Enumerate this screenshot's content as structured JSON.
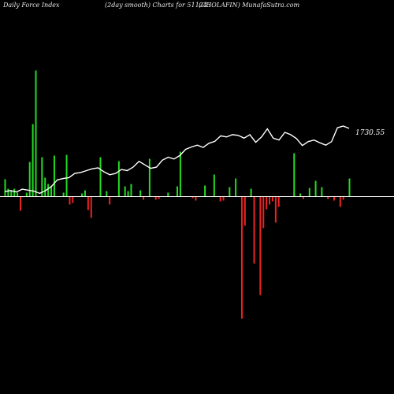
{
  "header": {
    "title_left": "Daily Force  Index",
    "title_center": "(2day smooth) Charts for 511243",
    "title_right": "(CHOLAFIN) MunafaSutra.com"
  },
  "chart_data": {
    "type": "bar",
    "title": "Daily Force Index (2day smooth) Charts for 511243",
    "xlabel": "",
    "ylabel": "",
    "grid": false,
    "legend": "none",
    "colors": {
      "positive": "#22dd22",
      "negative": "#ee2222",
      "zero_line": "#ffffff",
      "price_line": "#ffffff",
      "background": "#000000"
    },
    "force_index": [
      22,
      10,
      7,
      10,
      5,
      -18,
      0,
      5,
      44,
      92,
      160,
      0,
      50,
      24,
      16,
      13,
      52,
      0,
      0,
      5,
      53,
      -10,
      -8,
      0,
      0,
      4,
      8,
      -17,
      -27,
      0,
      0,
      50,
      0,
      7,
      -10,
      0,
      0,
      45,
      0,
      13,
      7,
      16,
      0,
      0,
      8,
      -4,
      0,
      48,
      0,
      -4,
      -3,
      0,
      0,
      5,
      0,
      0,
      13,
      57,
      0,
      0,
      0,
      -2,
      -5,
      0,
      0,
      14,
      0,
      0,
      28,
      0,
      -6,
      -5,
      0,
      12,
      0,
      23,
      0,
      -155,
      -37,
      0,
      10,
      -85,
      0,
      -125,
      -40,
      -16,
      -10,
      -6,
      -33,
      -13,
      0,
      0,
      0,
      0,
      55,
      0,
      4,
      -3,
      0,
      11,
      0,
      20,
      0,
      12,
      0,
      -3,
      0,
      -5,
      0,
      -13,
      -4,
      0,
      23
    ],
    "price": [
      1470,
      1474,
      1468,
      1480,
      1476,
      1472,
      1462,
      1474,
      1492,
      1520,
      1526,
      1530,
      1548,
      1552,
      1560,
      1568,
      1572,
      1555,
      1542,
      1548,
      1565,
      1560,
      1575,
      1600,
      1585,
      1570,
      1575,
      1605,
      1618,
      1610,
      1625,
      1652,
      1662,
      1670,
      1660,
      1678,
      1686,
      1710,
      1705,
      1715,
      1712,
      1700,
      1715,
      1682,
      1705,
      1740,
      1700,
      1692,
      1725,
      1715,
      1698,
      1668,
      1685,
      1692,
      1680,
      1670,
      1685,
      1745,
      1752,
      1742
    ],
    "last_price_label": "1730.55"
  }
}
